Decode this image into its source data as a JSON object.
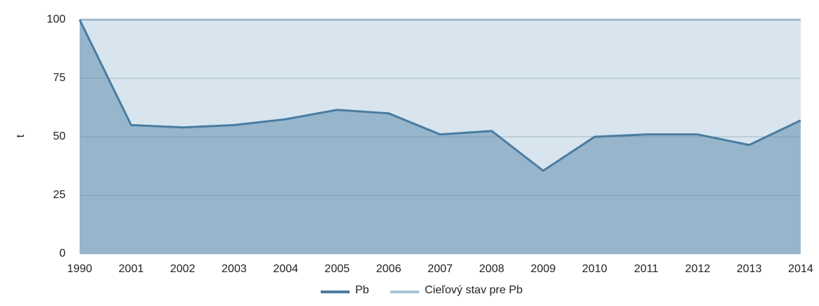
{
  "chart_data": {
    "type": "area",
    "y_label": "t",
    "categories": [
      "1990",
      "2001",
      "2002",
      "2003",
      "2004",
      "2005",
      "2006",
      "2007",
      "2008",
      "2009",
      "2010",
      "2011",
      "2012",
      "2013",
      "2014"
    ],
    "series": [
      {
        "name": "Cieľový stav pre Pb",
        "color": "#a9c5d9",
        "values": [
          100,
          100,
          100,
          100,
          100,
          100,
          100,
          100,
          100,
          100,
          100,
          100,
          100,
          100,
          100
        ]
      },
      {
        "name": "Pb",
        "color": "#4a7ca1",
        "values": [
          100,
          55,
          54,
          55,
          57.5,
          61.5,
          60,
          51,
          52.5,
          35.5,
          50,
          51,
          51,
          46.5,
          57
        ]
      }
    ],
    "ylim": [
      0,
      100
    ],
    "yticks": [
      0,
      25,
      50,
      75,
      100
    ],
    "grid": true
  }
}
